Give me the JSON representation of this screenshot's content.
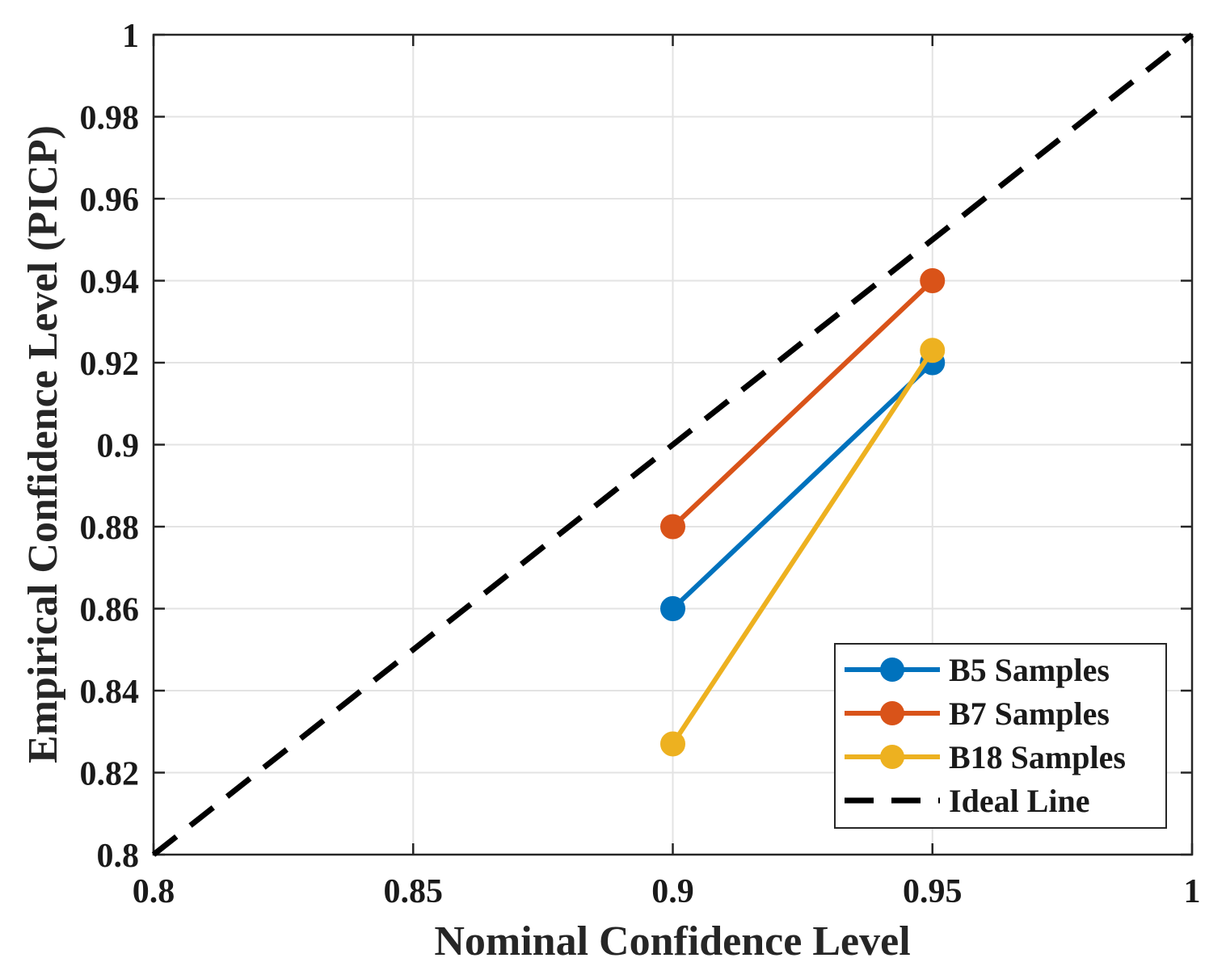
{
  "chart_data": {
    "type": "line",
    "title": "",
    "xlabel": "Nominal Confidence Level",
    "ylabel": "Empirical Confidence Level (PICP)",
    "xlim": [
      0.8,
      1.0
    ],
    "ylim": [
      0.8,
      1.0
    ],
    "xticks": [
      0.8,
      0.85,
      0.9,
      0.95,
      1.0
    ],
    "xtick_labels": [
      "0.8",
      "0.85",
      "0.9",
      "0.95",
      "1"
    ],
    "yticks": [
      0.8,
      0.82,
      0.84,
      0.86,
      0.88,
      0.9,
      0.92,
      0.94,
      0.96,
      0.98,
      1.0
    ],
    "ytick_labels": [
      "0.8",
      "0.82",
      "0.84",
      "0.86",
      "0.88",
      "0.9",
      "0.92",
      "0.94",
      "0.96",
      "0.98",
      "1"
    ],
    "grid": true,
    "legend_position": "bottom-right",
    "series": [
      {
        "name": "B5 Samples",
        "color": "#0072BD",
        "marker": "circle",
        "line_style": "solid",
        "x": [
          0.9,
          0.95
        ],
        "y": [
          0.86,
          0.92
        ]
      },
      {
        "name": "B7 Samples",
        "color": "#D95319",
        "marker": "circle",
        "line_style": "solid",
        "x": [
          0.9,
          0.95
        ],
        "y": [
          0.88,
          0.94
        ]
      },
      {
        "name": "B18 Samples",
        "color": "#EDB120",
        "marker": "circle",
        "line_style": "solid",
        "x": [
          0.9,
          0.95
        ],
        "y": [
          0.827,
          0.923
        ]
      },
      {
        "name": "Ideal Line",
        "color": "#000000",
        "marker": "none",
        "line_style": "dashed",
        "x": [
          0.8,
          1.0
        ],
        "y": [
          0.8,
          1.0
        ]
      }
    ]
  }
}
